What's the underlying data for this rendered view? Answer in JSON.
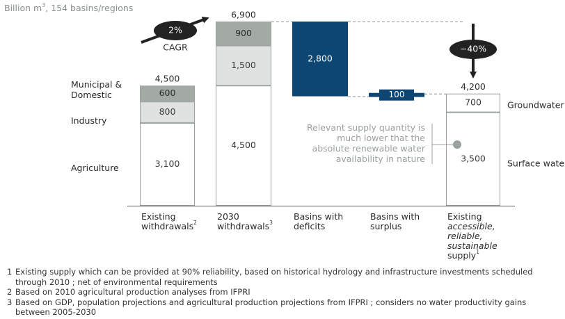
{
  "chart_data": {
    "type": "waterfall-bar",
    "units": "Billion m",
    "units_superscript": "3",
    "units_suffix": ", 154 basins/regions",
    "y_max": 6900,
    "bars": [
      {
        "id": "existing-withdrawals",
        "label_lines": [
          "Existing",
          "withdrawals"
        ],
        "label_superscript": "2",
        "total": 4500,
        "total_label": "4,500",
        "segments": [
          {
            "key": "agriculture",
            "value": 3100,
            "label": "3,100",
            "color": "#ffffff",
            "text_color": "#3a3a3a"
          },
          {
            "key": "industry",
            "value": 800,
            "label": "800",
            "color": "#dfe2e1",
            "text_color": "#3a3a3a"
          },
          {
            "key": "municipal",
            "value": 600,
            "label": "600",
            "color": "#a3aaa6",
            "text_color": "#2b2b2b"
          }
        ]
      },
      {
        "id": "withdrawals-2030",
        "label_lines": [
          "2030",
          "withdrawals"
        ],
        "label_superscript": "3",
        "total": 6900,
        "total_label": "6,900",
        "segments": [
          {
            "key": "agriculture",
            "value": 4500,
            "label": "4,500",
            "color": "#ffffff",
            "text_color": "#3a3a3a"
          },
          {
            "key": "industry",
            "value": 1500,
            "label": "1,500",
            "color": "#dfe2e1",
            "text_color": "#3a3a3a"
          },
          {
            "key": "municipal",
            "value": 900,
            "label": "900",
            "color": "#a3aaa6",
            "text_color": "#2b2b2b"
          }
        ]
      },
      {
        "id": "basins-deficits",
        "label_lines": [
          "Basins with",
          "deficits"
        ],
        "floating": true,
        "from": 4100,
        "to": 6900,
        "value": 2800,
        "value_label": "2,800",
        "color": "#0d4672",
        "text_color": "#ffffff"
      },
      {
        "id": "basins-surplus",
        "label_lines": [
          "Basins with",
          "surplus"
        ],
        "floating": true,
        "from": 4100,
        "to": 4200,
        "value": 100,
        "value_label": "100",
        "color": "#0d4672",
        "text_color": "#ffffff"
      },
      {
        "id": "existing-supply",
        "label_lines": [
          "Existing",
          "accessible,",
          "reliable,",
          "sustainable",
          "supply"
        ],
        "label_italic_lines": [
          1,
          2,
          3
        ],
        "label_superscript": "1",
        "total": 4200,
        "total_label": "4,200",
        "segments": [
          {
            "key": "surface-water",
            "value": 3500,
            "label": "3,500",
            "color": "#ffffff",
            "text_color": "#3a3a3a"
          },
          {
            "key": "groundwater",
            "value": 700,
            "label": "700",
            "color": "#ffffff",
            "text_color": "#3a3a3a"
          }
        ]
      }
    ],
    "left_legend": [
      {
        "key": "municipal",
        "lines": [
          "Municipal &",
          "Domestic"
        ]
      },
      {
        "key": "industry",
        "lines": [
          "Industry"
        ]
      },
      {
        "key": "agriculture",
        "lines": [
          "Agriculture"
        ]
      }
    ],
    "right_legend": [
      {
        "key": "groundwater",
        "lines": [
          "Groundwater"
        ]
      },
      {
        "key": "surface-water",
        "lines": [
          "Surface water"
        ]
      }
    ],
    "cagr": {
      "value_label": "2%",
      "caption": "CAGR"
    },
    "gap": {
      "value_label": "−40%"
    },
    "annotation": [
      "Relevant supply quantity is",
      "much lower that the",
      "absolute renewable water",
      "availability in nature"
    ],
    "colors": {
      "dark_gray": "#a3aaa6",
      "light_gray": "#dfe2e1",
      "navy": "#0d4672",
      "bar_border": "#9aa19c",
      "annotation_text": "#9aa19c",
      "axis": "#555555",
      "black": "#222222"
    }
  },
  "footnotes": [
    {
      "num": "1",
      "text": "Existing supply which can be provided at 90% reliability, based on historical hydrology and infrastructure investments scheduled through 2010 ; net of environmental requirements"
    },
    {
      "num": "2",
      "text": "Based on 2010 agricultural production analyses from IFPRI"
    },
    {
      "num": "3",
      "text": "Based on GDP, population projections and agricultural production projections from IFPRI ; considers no water productivity gains between 2005-2030"
    }
  ]
}
